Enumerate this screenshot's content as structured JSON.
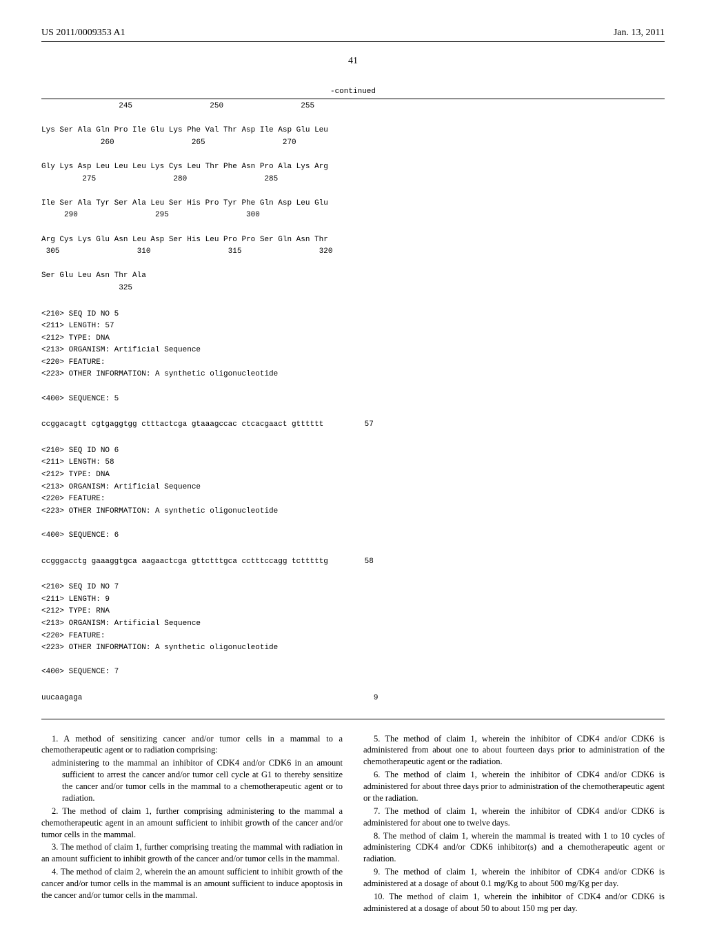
{
  "header": {
    "pub_number": "US 2011/0009353 A1",
    "date": "Jan. 13, 2011"
  },
  "page_number": "41",
  "continued_label": "-continued",
  "seq_top": "                 245                 250                 255\n\nLys Ser Ala Gln Pro Ile Glu Lys Phe Val Thr Asp Ile Asp Glu Leu\n             260                 265                 270\n\nGly Lys Asp Leu Leu Leu Lys Cys Leu Thr Phe Asn Pro Ala Lys Arg\n         275                 280                 285\n\nIle Ser Ala Tyr Ser Ala Leu Ser His Pro Tyr Phe Gln Asp Leu Glu\n     290                 295                 300\n\nArg Cys Lys Glu Asn Leu Asp Ser His Leu Pro Pro Ser Gln Asn Thr\n 305                 310                 315                 320\n\nSer Glu Leu Asn Thr Ala\n                 325",
  "seq5_meta": "<210> SEQ ID NO 5\n<211> LENGTH: 57\n<212> TYPE: DNA\n<213> ORGANISM: Artificial Sequence\n<220> FEATURE:\n<223> OTHER INFORMATION: A synthetic oligonucleotide\n\n<400> SEQUENCE: 5",
  "seq5_data": "ccggacagtt cgtgaggtgg ctttactcga gtaaagccac ctcacgaact gtttttt         57",
  "seq6_meta": "<210> SEQ ID NO 6\n<211> LENGTH: 58\n<212> TYPE: DNA\n<213> ORGANISM: Artificial Sequence\n<220> FEATURE:\n<223> OTHER INFORMATION: A synthetic oligonucleotide\n\n<400> SEQUENCE: 6",
  "seq6_data": "ccgggacctg gaaaggtgca aagaactcga gttctttgca cctttccagg tctttttg        58",
  "seq7_meta": "<210> SEQ ID NO 7\n<211> LENGTH: 9\n<212> TYPE: RNA\n<213> ORGANISM: Artificial Sequence\n<220> FEATURE:\n<223> OTHER INFORMATION: A synthetic oligonucleotide\n\n<400> SEQUENCE: 7",
  "seq7_data": "uucaagaga                                                                9",
  "claims": {
    "c1_intro": "1. A method of sensitizing cancer and/or tumor cells in a mammal to a chemotherapeutic agent or to radiation comprising:",
    "c1_sub": "administering to the mammal an inhibitor of CDK4 and/or CDK6 in an amount sufficient to arrest the cancer and/or tumor cell cycle at G1 to thereby sensitize the cancer and/or tumor cells in the mammal to a chemotherapeutic agent or to radiation.",
    "c2": "2. The method of claim 1, further comprising administering to the mammal a chemotherapeutic agent in an amount sufficient to inhibit growth of the cancer and/or tumor cells in the mammal.",
    "c3": "3. The method of claim 1, further comprising treating the mammal with radiation in an amount sufficient to inhibit growth of the cancer and/or tumor cells in the mammal.",
    "c4": "4. The method of claim 2, wherein the an amount sufficient to inhibit growth of the cancer and/or tumor cells in the mammal is an amount sufficient to induce apoptosis in the cancer and/or tumor cells in the mammal.",
    "c5": "5. The method of claim 1, wherein the inhibitor of CDK4 and/or CDK6 is administered from about one to about fourteen days prior to administration of the chemotherapeutic agent or the radiation.",
    "c6": "6. The method of claim 1, wherein the inhibitor of CDK4 and/or CDK6 is administered for about three days prior to administration of the chemotherapeutic agent or the radiation.",
    "c7": "7. The method of claim 1, wherein the inhibitor of CDK4 and/or CDK6 is administered for about one to twelve days.",
    "c8": "8. The method of claim 1, wherein the mammal is treated with 1 to 10 cycles of administering CDK4 and/or CDK6 inhibitor(s) and a chemotherapeutic agent or radiation.",
    "c9": "9. The method of claim 1, wherein the inhibitor of CDK4 and/or CDK6 is administered at a dosage of about 0.1 mg/Kg to about 500 mg/Kg per day.",
    "c10": "10. The method of claim 1, wherein the inhibitor of CDK4 and/or CDK6 is administered at a dosage of about 50 to about 150 mg per day."
  }
}
